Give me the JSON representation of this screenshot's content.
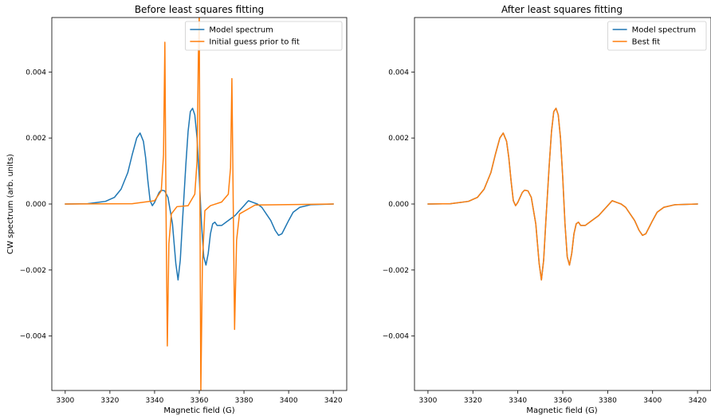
{
  "chart_data": [
    {
      "type": "line",
      "title": "Before least squares fitting",
      "xlabel": "Magnetic field (G)",
      "ylabel": "CW spectrum (arb. units)",
      "xlim": [
        3294,
        3426
      ],
      "ylim": [
        -0.00565,
        0.00565
      ],
      "xticks": [
        3300,
        3320,
        3340,
        3360,
        3380,
        3400,
        3420
      ],
      "yticks": [
        -0.004,
        -0.002,
        0.0,
        0.002,
        0.004
      ],
      "xtick_labels": [
        "3300",
        "3320",
        "3340",
        "3360",
        "3380",
        "3400",
        "3420"
      ],
      "ytick_labels": [
        "−0.004",
        "−0.002",
        "0.000",
        "0.002",
        "0.004"
      ],
      "legend_position": "top-right",
      "series": [
        {
          "name": "Model spectrum",
          "color": "#1f77b4",
          "x": [
            3300,
            3310,
            3318,
            3322,
            3325,
            3328,
            3330,
            3332,
            3333.5,
            3335,
            3336,
            3337,
            3338,
            3339,
            3340,
            3341,
            3342,
            3343,
            3344.5,
            3346,
            3348,
            3349.5,
            3350.5,
            3351.5,
            3352.5,
            3354,
            3355,
            3356,
            3357,
            3358,
            3359,
            3360,
            3361,
            3362,
            3363,
            3364,
            3365,
            3366,
            3367,
            3368,
            3370,
            3372,
            3374,
            3376,
            3378,
            3380,
            3382,
            3384,
            3386,
            3388,
            3390,
            3392,
            3394,
            3395.5,
            3397,
            3398.5,
            3400,
            3402,
            3405,
            3410,
            3420
          ],
          "y": [
            0.0,
            1e-05,
            8e-05,
            0.0002,
            0.00045,
            0.00095,
            0.0015,
            0.002,
            0.00215,
            0.0019,
            0.0014,
            0.0007,
            0.0001,
            -5e-05,
            5e-05,
            0.0002,
            0.00035,
            0.00042,
            0.0004,
            0.0002,
            -0.0006,
            -0.0018,
            -0.0023,
            -0.0017,
            -0.0005,
            0.0012,
            0.0022,
            0.0028,
            0.0029,
            0.0027,
            0.002,
            0.0008,
            -0.0006,
            -0.0016,
            -0.00185,
            -0.0015,
            -0.0009,
            -0.0006,
            -0.00055,
            -0.00065,
            -0.00065,
            -0.00055,
            -0.00045,
            -0.00035,
            -0.0002,
            -5e-05,
            0.0001,
            5e-05,
            0.0,
            -0.0001,
            -0.0003,
            -0.0005,
            -0.0008,
            -0.00095,
            -0.0009,
            -0.0007,
            -0.0005,
            -0.00025,
            -0.0001,
            -2e-05,
            0.0
          ]
        },
        {
          "name": "Initial guess prior to fit",
          "color": "#ff7f0e",
          "x": [
            3300,
            3330,
            3340,
            3343,
            3344,
            3344.6,
            3345.1,
            3345.7,
            3346.4,
            3347.5,
            3350,
            3355,
            3358,
            3359,
            3359.6,
            3360,
            3360.3,
            3360.7,
            3361.4,
            3362.5,
            3365,
            3370,
            3373,
            3374,
            3374.6,
            3375.2,
            3375.8,
            3376.7,
            3378,
            3385,
            3420
          ],
          "y": [
            0.0,
            1e-05,
            0.0001,
            0.0004,
            0.0015,
            0.0049,
            0.0,
            -0.0043,
            -0.0012,
            -0.0003,
            -8e-05,
            -5e-05,
            0.0003,
            0.0013,
            0.0045,
            0.0058,
            0.0,
            -0.0057,
            -0.0018,
            -0.0002,
            -5e-05,
            6e-05,
            0.0003,
            0.0011,
            0.0038,
            0.0,
            -0.0038,
            -0.0011,
            -0.0003,
            -3e-05,
            0.0
          ]
        }
      ]
    },
    {
      "type": "line",
      "title": "After least squares fitting",
      "xlabel": "Magnetic field (G)",
      "ylabel": "",
      "xlim": [
        3294,
        3426
      ],
      "ylim": [
        -0.00565,
        0.00565
      ],
      "xticks": [
        3300,
        3320,
        3340,
        3360,
        3380,
        3400,
        3420
      ],
      "yticks": [
        -0.004,
        -0.002,
        0.0,
        0.002,
        0.004
      ],
      "xtick_labels": [
        "3300",
        "3320",
        "3340",
        "3360",
        "3380",
        "3400",
        "3420"
      ],
      "ytick_labels": [
        "−0.004",
        "−0.002",
        "0.000",
        "0.002",
        "0.004"
      ],
      "legend_position": "top-right",
      "series": [
        {
          "name": "Model spectrum",
          "color": "#1f77b4",
          "x": [
            3300,
            3310,
            3318,
            3322,
            3325,
            3328,
            3330,
            3332,
            3333.5,
            3335,
            3336,
            3337,
            3338,
            3339,
            3340,
            3341,
            3342,
            3343,
            3344.5,
            3346,
            3348,
            3349.5,
            3350.5,
            3351.5,
            3352.5,
            3354,
            3355,
            3356,
            3357,
            3358,
            3359,
            3360,
            3361,
            3362,
            3363,
            3364,
            3365,
            3366,
            3367,
            3368,
            3370,
            3372,
            3374,
            3376,
            3378,
            3380,
            3382,
            3384,
            3386,
            3388,
            3390,
            3392,
            3394,
            3395.5,
            3397,
            3398.5,
            3400,
            3402,
            3405,
            3410,
            3420
          ],
          "y": [
            0.0,
            1e-05,
            8e-05,
            0.0002,
            0.00045,
            0.00095,
            0.0015,
            0.002,
            0.00215,
            0.0019,
            0.0014,
            0.0007,
            0.0001,
            -5e-05,
            5e-05,
            0.0002,
            0.00035,
            0.00042,
            0.0004,
            0.0002,
            -0.0006,
            -0.0018,
            -0.0023,
            -0.0017,
            -0.0005,
            0.0012,
            0.0022,
            0.0028,
            0.0029,
            0.0027,
            0.002,
            0.0008,
            -0.0006,
            -0.0016,
            -0.00185,
            -0.0015,
            -0.0009,
            -0.0006,
            -0.00055,
            -0.00065,
            -0.00065,
            -0.00055,
            -0.00045,
            -0.00035,
            -0.0002,
            -5e-05,
            0.0001,
            5e-05,
            0.0,
            -0.0001,
            -0.0003,
            -0.0005,
            -0.0008,
            -0.00095,
            -0.0009,
            -0.0007,
            -0.0005,
            -0.00025,
            -0.0001,
            -2e-05,
            0.0
          ]
        },
        {
          "name": "Best fit",
          "color": "#ff7f0e",
          "x": [
            3300,
            3310,
            3318,
            3322,
            3325,
            3328,
            3330,
            3332,
            3333.5,
            3335,
            3336,
            3337,
            3338,
            3339,
            3340,
            3341,
            3342,
            3343,
            3344.5,
            3346,
            3348,
            3349.5,
            3350.5,
            3351.5,
            3352.5,
            3354,
            3355,
            3356,
            3357,
            3358,
            3359,
            3360,
            3361,
            3362,
            3363,
            3364,
            3365,
            3366,
            3367,
            3368,
            3370,
            3372,
            3374,
            3376,
            3378,
            3380,
            3382,
            3384,
            3386,
            3388,
            3390,
            3392,
            3394,
            3395.5,
            3397,
            3398.5,
            3400,
            3402,
            3405,
            3410,
            3420
          ],
          "y": [
            0.0,
            1e-05,
            8e-05,
            0.0002,
            0.00045,
            0.00095,
            0.0015,
            0.002,
            0.00215,
            0.0019,
            0.0014,
            0.0007,
            0.0001,
            -5e-05,
            5e-05,
            0.0002,
            0.00035,
            0.00042,
            0.0004,
            0.0002,
            -0.0006,
            -0.0018,
            -0.0023,
            -0.0017,
            -0.0005,
            0.0012,
            0.0022,
            0.0028,
            0.0029,
            0.0027,
            0.002,
            0.0008,
            -0.0006,
            -0.0016,
            -0.00185,
            -0.0015,
            -0.0009,
            -0.0006,
            -0.00055,
            -0.00065,
            -0.00065,
            -0.00055,
            -0.00045,
            -0.00035,
            -0.0002,
            -5e-05,
            0.0001,
            5e-05,
            0.0,
            -0.0001,
            -0.0003,
            -0.0005,
            -0.0008,
            -0.00095,
            -0.0009,
            -0.0007,
            -0.0005,
            -0.00025,
            -0.0001,
            -2e-05,
            0.0
          ]
        }
      ]
    }
  ]
}
